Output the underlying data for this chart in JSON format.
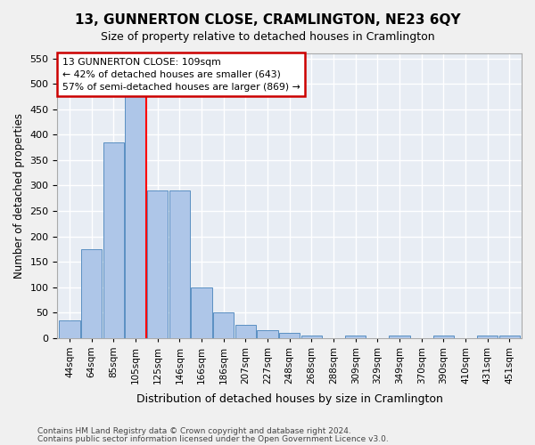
{
  "title": "13, GUNNERTON CLOSE, CRAMLINGTON, NE23 6QY",
  "subtitle": "Size of property relative to detached houses in Cramlington",
  "xlabel": "Distribution of detached houses by size in Cramlington",
  "ylabel": "Number of detached properties",
  "footnote1": "Contains HM Land Registry data © Crown copyright and database right 2024.",
  "footnote2": "Contains public sector information licensed under the Open Government Licence v3.0.",
  "bin_labels": [
    "44sqm",
    "64sqm",
    "85sqm",
    "105sqm",
    "125sqm",
    "146sqm",
    "166sqm",
    "186sqm",
    "207sqm",
    "227sqm",
    "248sqm",
    "268sqm",
    "288sqm",
    "309sqm",
    "329sqm",
    "349sqm",
    "370sqm",
    "390sqm",
    "410sqm",
    "431sqm",
    "451sqm"
  ],
  "bar_values": [
    35,
    175,
    385,
    510,
    290,
    290,
    100,
    50,
    25,
    15,
    10,
    5,
    0,
    5,
    0,
    5,
    0,
    5,
    0,
    5,
    5
  ],
  "bar_color": "#aec6e8",
  "bar_edge_color": "#5a8fc2",
  "background_color": "#e8edf4",
  "grid_color": "#ffffff",
  "red_line_x": 3.5,
  "ylim": [
    0,
    560
  ],
  "yticks": [
    0,
    50,
    100,
    150,
    200,
    250,
    300,
    350,
    400,
    450,
    500,
    550
  ],
  "annotation_title": "13 GUNNERTON CLOSE: 109sqm",
  "annotation_line1": "← 42% of detached houses are smaller (643)",
  "annotation_line2": "57% of semi-detached houses are larger (869) →",
  "annotation_box_color": "#ffffff",
  "annotation_box_edge": "#cc0000"
}
